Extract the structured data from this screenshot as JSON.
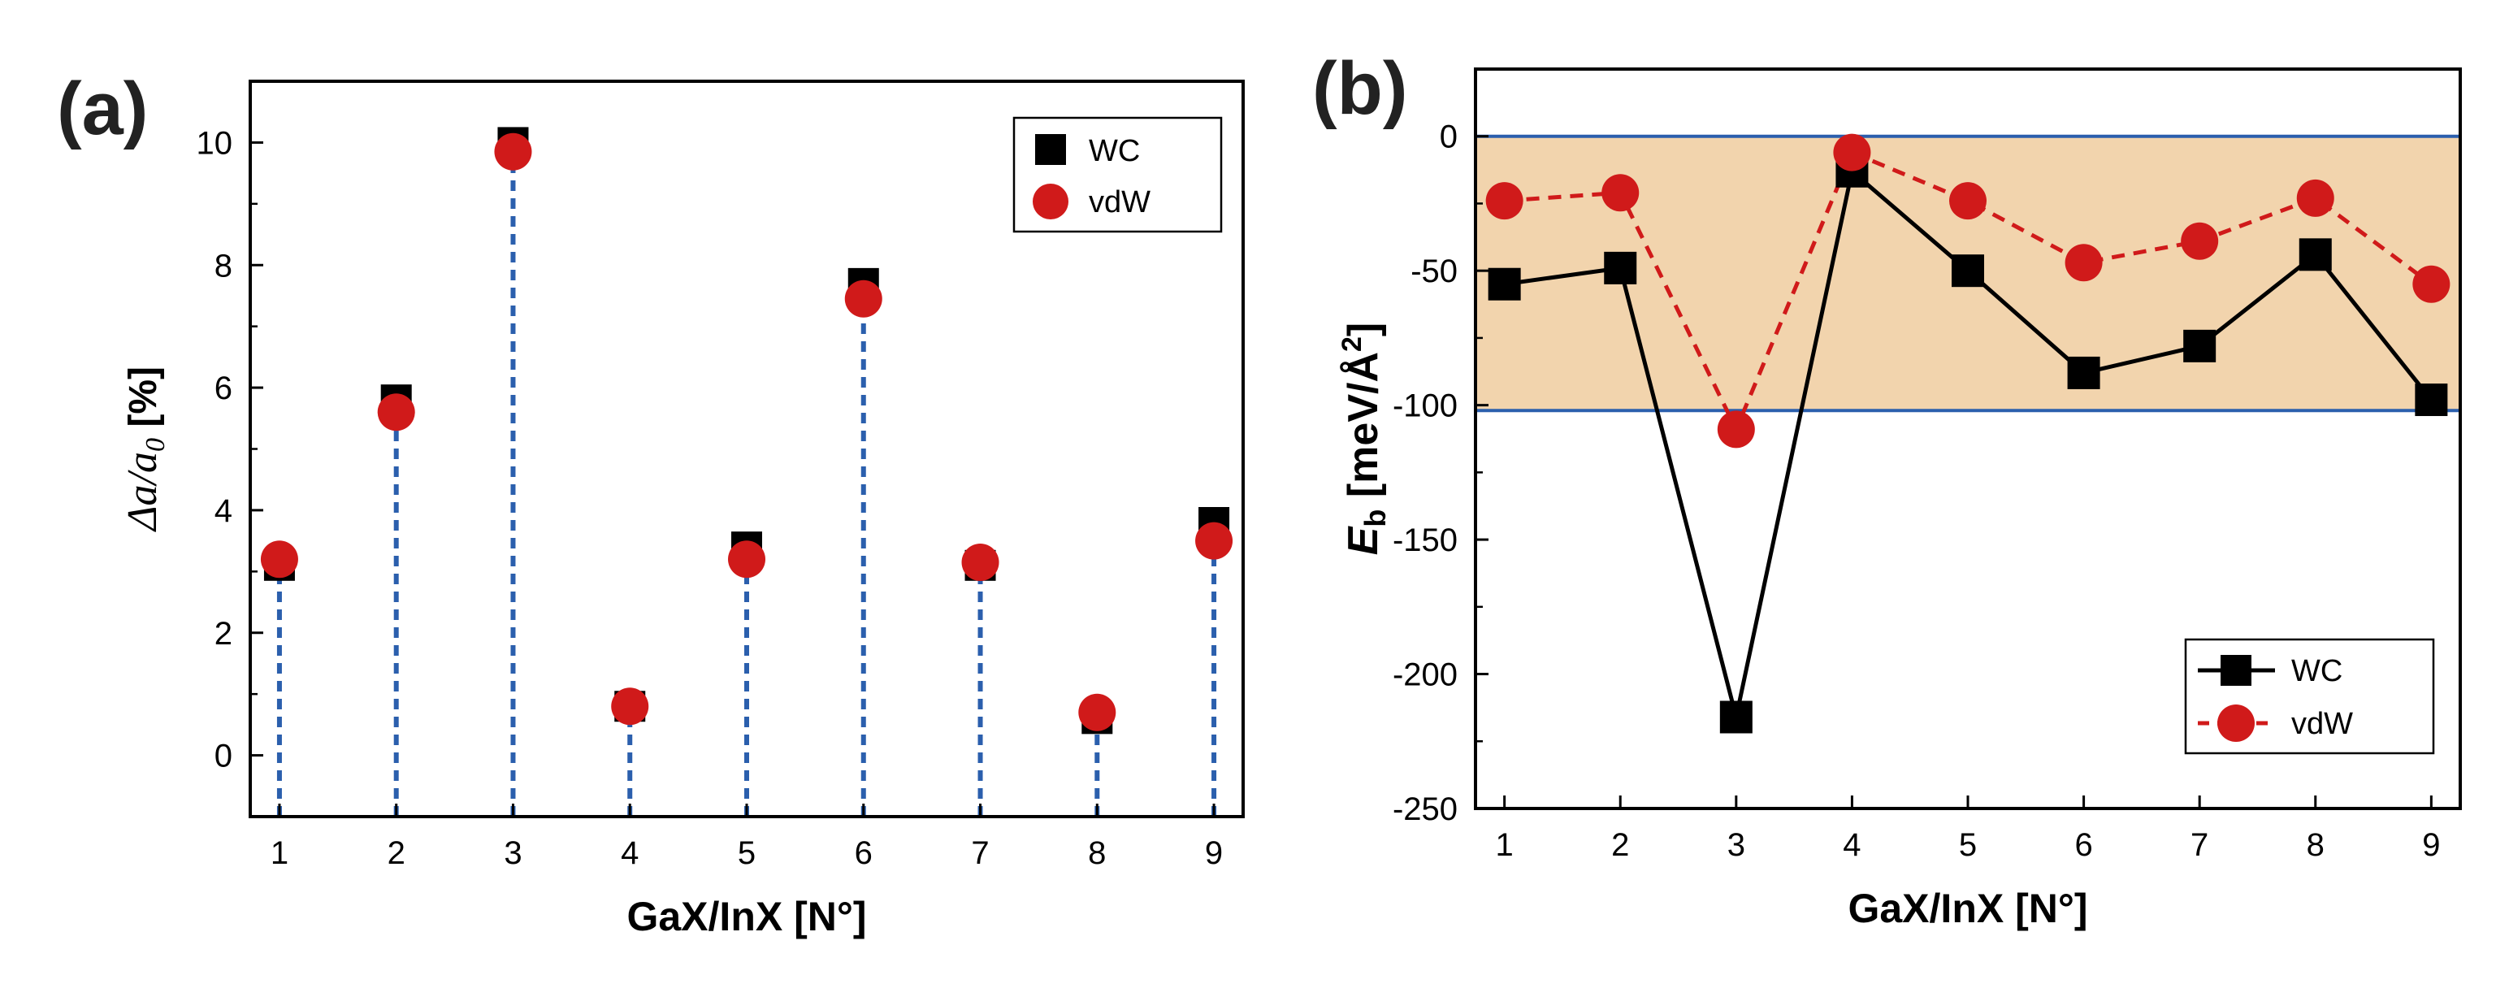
{
  "chart_data": [
    {
      "panel_label": "(a)",
      "type": "scatter",
      "xlabel": "GaX/InX [N°]",
      "ylabel_parts": [
        "Δ",
        "a",
        "/",
        "a",
        "0",
        " [%]"
      ],
      "x": [
        1,
        2,
        3,
        4,
        5,
        6,
        7,
        8,
        9
      ],
      "xlim": [
        0.75,
        9.25
      ],
      "ylim": [
        -1,
        11
      ],
      "xticks": [
        "1",
        "2",
        "3",
        "4",
        "5",
        "6",
        "7",
        "8",
        "9"
      ],
      "yticks": [
        0,
        2,
        4,
        6,
        8,
        10
      ],
      "stems": true,
      "series": [
        {
          "name": "WC",
          "marker": "square",
          "color": "#000000",
          "values": [
            3.1,
            5.8,
            10.0,
            0.8,
            3.4,
            7.7,
            3.1,
            0.6,
            3.8
          ]
        },
        {
          "name": "vdW",
          "marker": "circle",
          "color": "#d01a1a",
          "values": [
            3.2,
            5.6,
            9.85,
            0.8,
            3.2,
            7.45,
            3.15,
            0.7,
            3.5
          ]
        }
      ],
      "legend": "top-right",
      "stem_color": "#2b5fad"
    },
    {
      "panel_label": "(b)",
      "type": "line",
      "xlabel": "GaX/InX [N°]",
      "ylabel_parts": [
        "E",
        "b",
        " [meV/Å",
        "2",
        "]"
      ],
      "x": [
        1,
        2,
        3,
        4,
        5,
        6,
        7,
        8,
        9
      ],
      "xlim": [
        0.75,
        9.25
      ],
      "ylim": [
        -250,
        25
      ],
      "xticks": [
        "1",
        "2",
        "3",
        "4",
        "5",
        "6",
        "7",
        "8",
        "9"
      ],
      "yticks": [
        0,
        -50,
        -100,
        -150,
        -200,
        -250
      ],
      "band": {
        "top": 0,
        "bottom": -102,
        "fill": "#f2d4ad",
        "edge": "#2b5fad"
      },
      "series": [
        {
          "name": "WC",
          "marker": "square",
          "line": "solid",
          "color": "#000000",
          "values": [
            -55,
            -49,
            -216,
            -13,
            -50,
            -88,
            -78,
            -44,
            -98
          ]
        },
        {
          "name": "vdW",
          "marker": "circle",
          "line": "dashed",
          "color": "#d01a1a",
          "values": [
            -24,
            -21,
            -109,
            -6,
            -24,
            -47,
            -39,
            -23,
            -55
          ]
        }
      ],
      "legend": "bottom-right"
    }
  ]
}
